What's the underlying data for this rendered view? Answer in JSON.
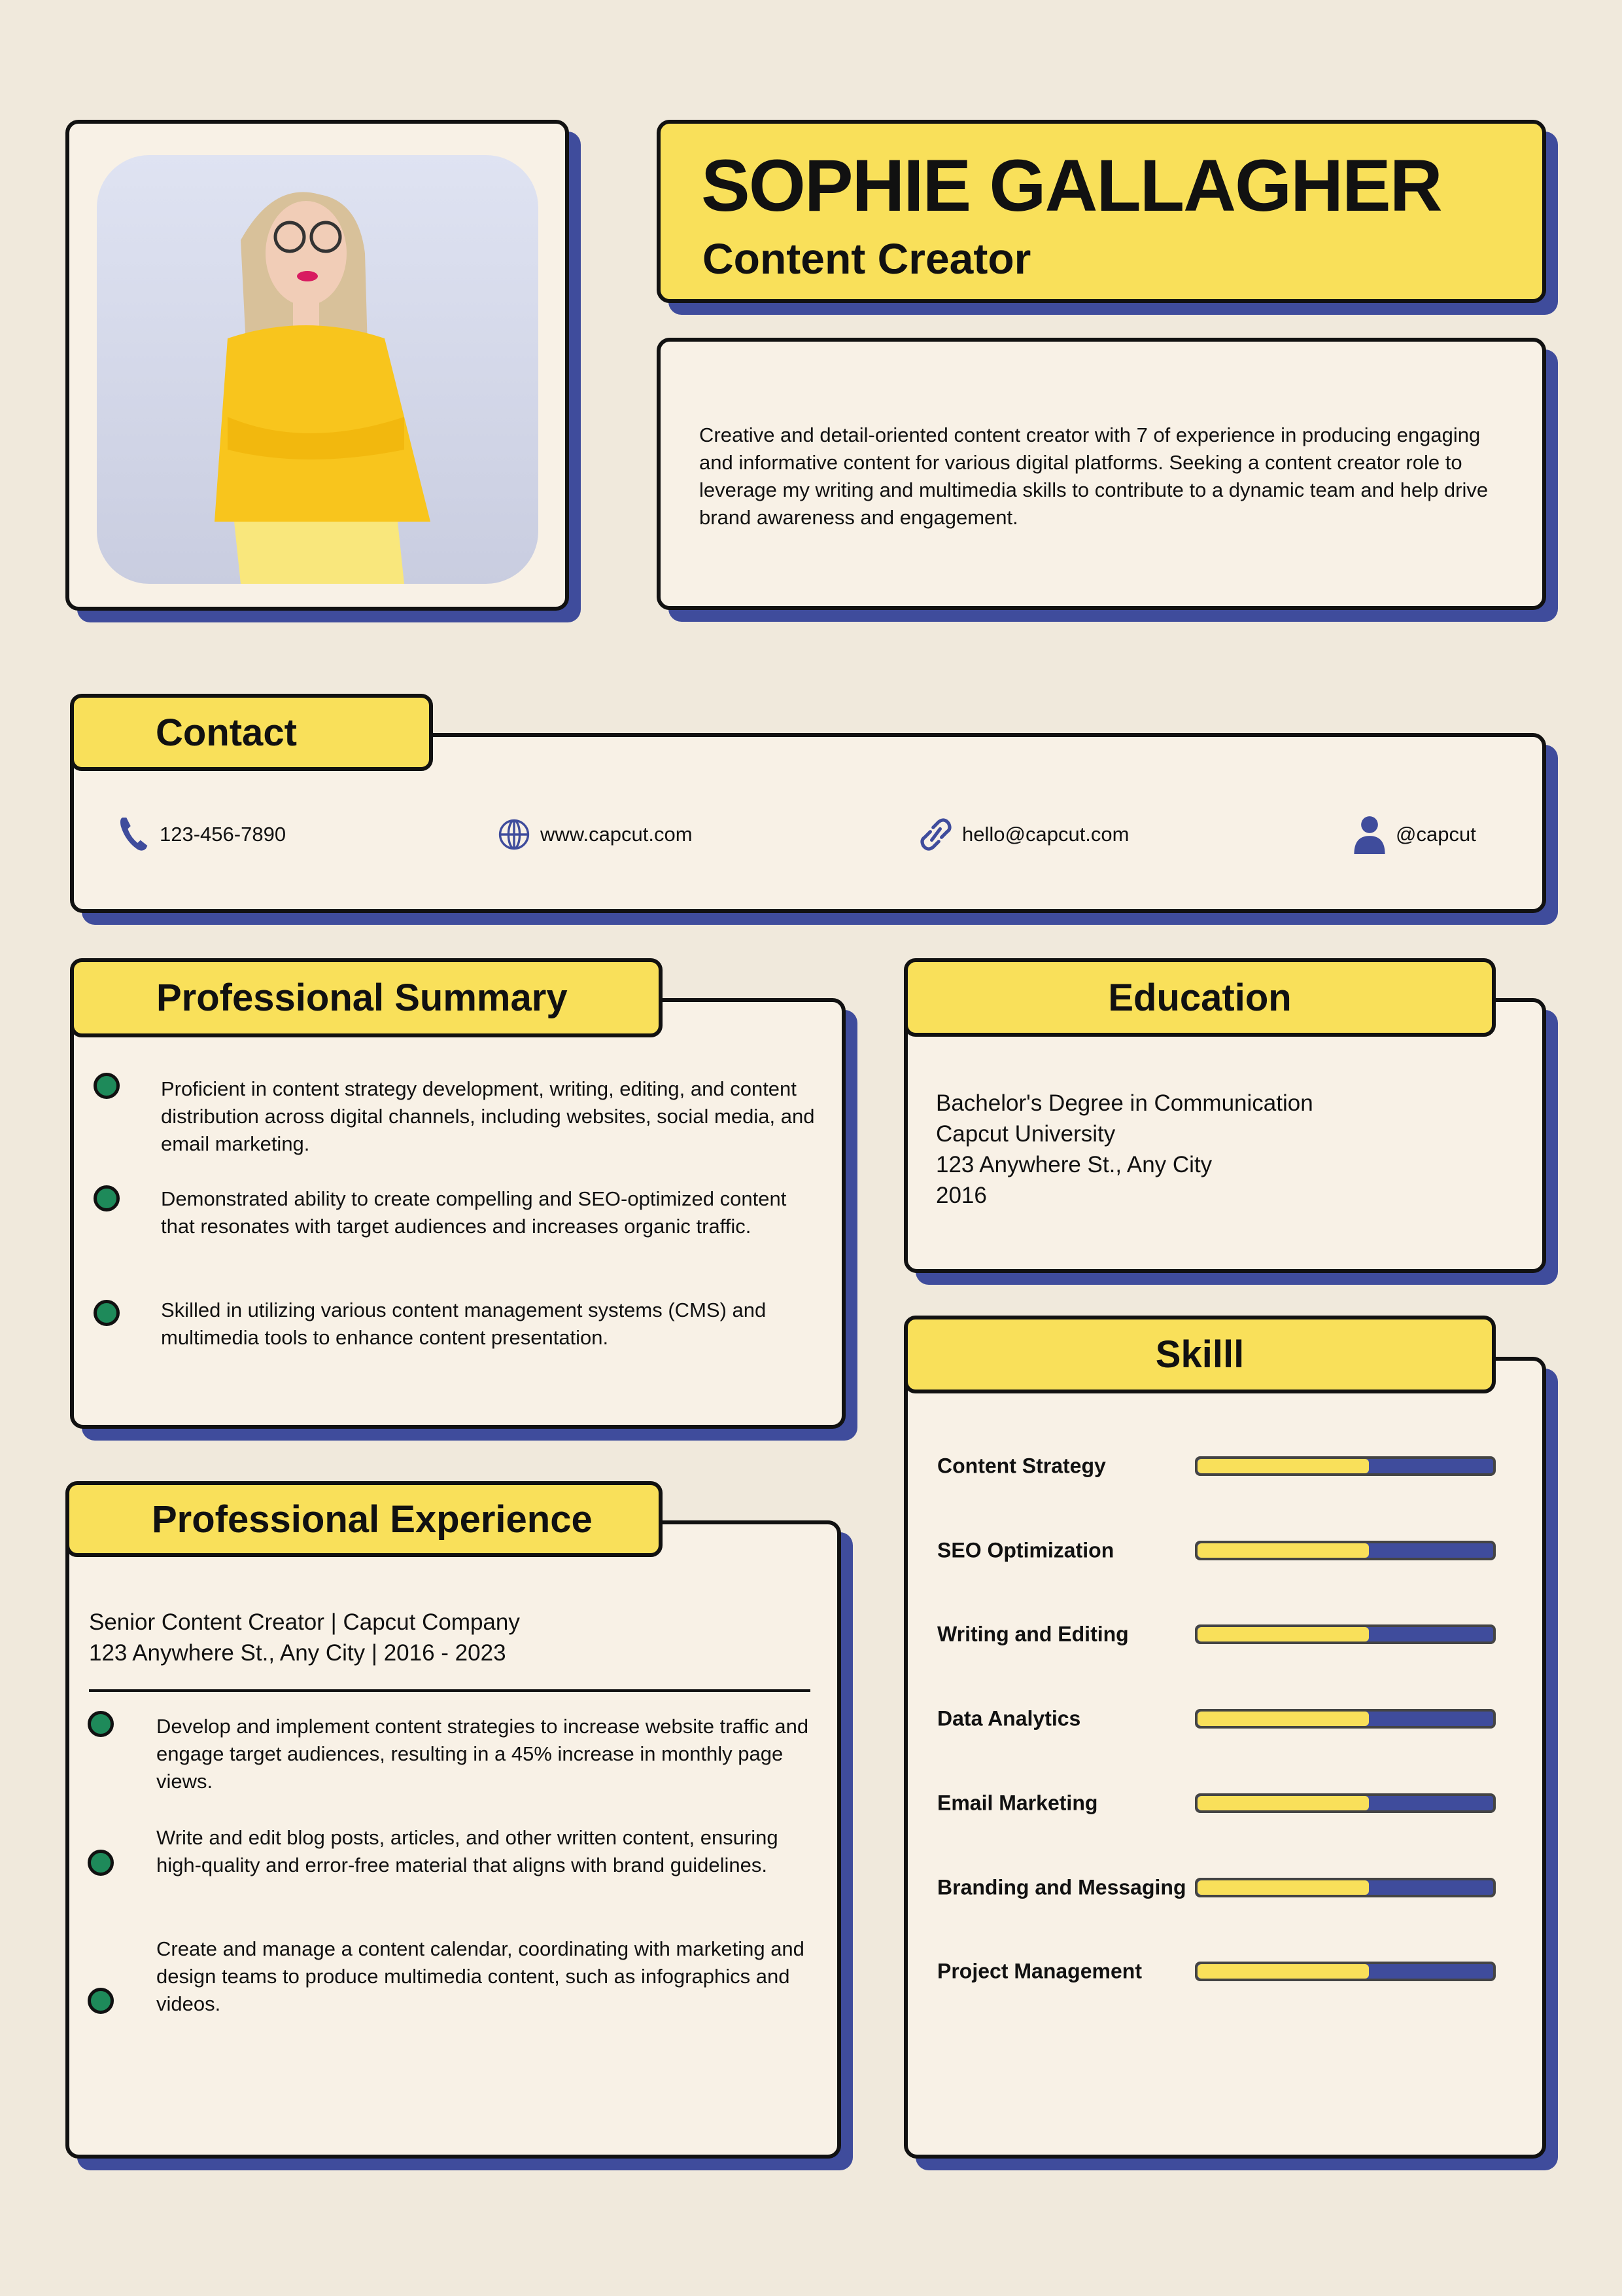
{
  "colors": {
    "background": "#f0e9dc",
    "card": "#f8f1e6",
    "accent_yellow": "#f9e05a",
    "shadow_blue": "#3f4c9c",
    "bullet_green": "#1e8a5a"
  },
  "header": {
    "name": "SOPHIE GALLAGHER",
    "title": "Content Creator"
  },
  "profile": {
    "text": "Creative and detail-oriented content creator with 7 of experience in producing engaging and informative content for various digital platforms. Seeking a content creator role to leverage my writing and multimedia skills to contribute to a dynamic team and help drive brand awareness and engagement."
  },
  "contact": {
    "heading": "Contact",
    "items": [
      {
        "icon": "phone-icon",
        "text": "123-456-7890"
      },
      {
        "icon": "globe-icon",
        "text": "www.capcut.com"
      },
      {
        "icon": "link-icon",
        "text": "hello@capcut.com"
      },
      {
        "icon": "person-icon",
        "text": "@capcut"
      }
    ]
  },
  "summary": {
    "heading": "Professional Summary",
    "bullets": [
      "Proficient in content strategy development, writing, editing, and content distribution across digital channels, including websites, social media, and email marketing.",
      "Demonstrated ability to create compelling and SEO-optimized content that resonates with target audiences and increases organic traffic.",
      "Skilled in utilizing various content management systems (CMS) and multimedia tools to enhance content presentation."
    ]
  },
  "experience": {
    "heading": "Professional Experience",
    "job_title": "Senior Content Creator | Capcut Company",
    "job_meta": "123 Anywhere St., Any City | 2016 - 2023",
    "bullets": [
      "Develop and implement content strategies to increase website traffic and engage target audiences, resulting in a 45% increase in  monthly page views.",
      "Write and edit blog posts, articles, and other written content, ensuring high-quality and error-free material that aligns with brand guidelines.",
      "Create and manage a content calendar, coordinating with marketing and design teams to produce multimedia content, such as infographics and videos."
    ]
  },
  "education": {
    "heading": "Education",
    "degree": "Bachelor's Degree in Communication",
    "school": "Capcut University",
    "address": "123 Anywhere St., Any City",
    "year": "2016"
  },
  "skills": {
    "heading": "Skilll",
    "items": [
      {
        "name": "Content Strategy",
        "level": 0.58
      },
      {
        "name": "SEO Optimization",
        "level": 0.58
      },
      {
        "name": "Writing and Editing",
        "level": 0.58
      },
      {
        "name": "Data Analytics",
        "level": 0.58
      },
      {
        "name": "Email Marketing",
        "level": 0.58
      },
      {
        "name": "Branding and Messaging",
        "level": 0.58
      },
      {
        "name": "Project Management",
        "level": 0.58
      }
    ]
  }
}
